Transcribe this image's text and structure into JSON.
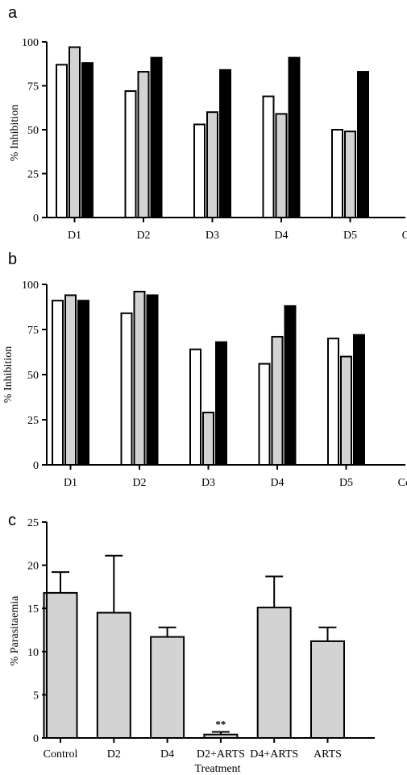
{
  "chart_data": [
    {
      "panel_label": "a",
      "type": "bar",
      "ylabel": "% Inhibition",
      "ylim": [
        0,
        100
      ],
      "yticks": [
        "0",
        "25",
        "50",
        "75",
        "100"
      ],
      "categories": [
        "D1",
        "D2",
        "D3",
        "D4",
        "D5",
        "Control"
      ],
      "series": [
        {
          "fill": "#ffffff",
          "values": [
            87,
            72,
            53,
            69,
            50,
            0
          ]
        },
        {
          "fill": "#d3d3d3",
          "values": [
            97,
            83,
            60,
            59,
            49,
            0
          ]
        },
        {
          "fill": "#000000",
          "values": [
            88,
            91,
            84,
            91,
            83,
            0
          ]
        }
      ],
      "grid": false
    },
    {
      "panel_label": "b",
      "type": "bar",
      "ylabel": "% Inhibition",
      "ylim": [
        0,
        100
      ],
      "yticks": [
        "0",
        "25",
        "50",
        "75",
        "100"
      ],
      "categories": [
        "D1",
        "D2",
        "D3",
        "D4",
        "D5",
        "Control"
      ],
      "series": [
        {
          "fill": "#ffffff",
          "values": [
            91,
            84,
            64,
            56,
            70,
            0
          ]
        },
        {
          "fill": "#d3d3d3",
          "values": [
            94,
            96,
            29,
            71,
            60,
            0
          ]
        },
        {
          "fill": "#000000",
          "values": [
            91,
            94,
            68,
            88,
            72,
            0
          ]
        }
      ],
      "grid": false
    },
    {
      "panel_label": "c",
      "type": "bar",
      "xlabel": "Treatment",
      "ylabel": "% Parasitaemia",
      "ylim": [
        0,
        25
      ],
      "yticks": [
        "0",
        "5",
        "10",
        "15",
        "20",
        "25"
      ],
      "categories": [
        "Control",
        "D2",
        "D4",
        "D2+ARTS",
        "D4+ARTS",
        "ARTS"
      ],
      "values": [
        16.8,
        14.5,
        11.7,
        0.4,
        15.1,
        11.2
      ],
      "error": [
        2.4,
        6.6,
        1.1,
        0.3,
        3.6,
        1.6
      ],
      "fill": "#d3d3d3",
      "annotation": {
        "category": "D2+ARTS",
        "text": "**"
      },
      "grid": false
    }
  ]
}
